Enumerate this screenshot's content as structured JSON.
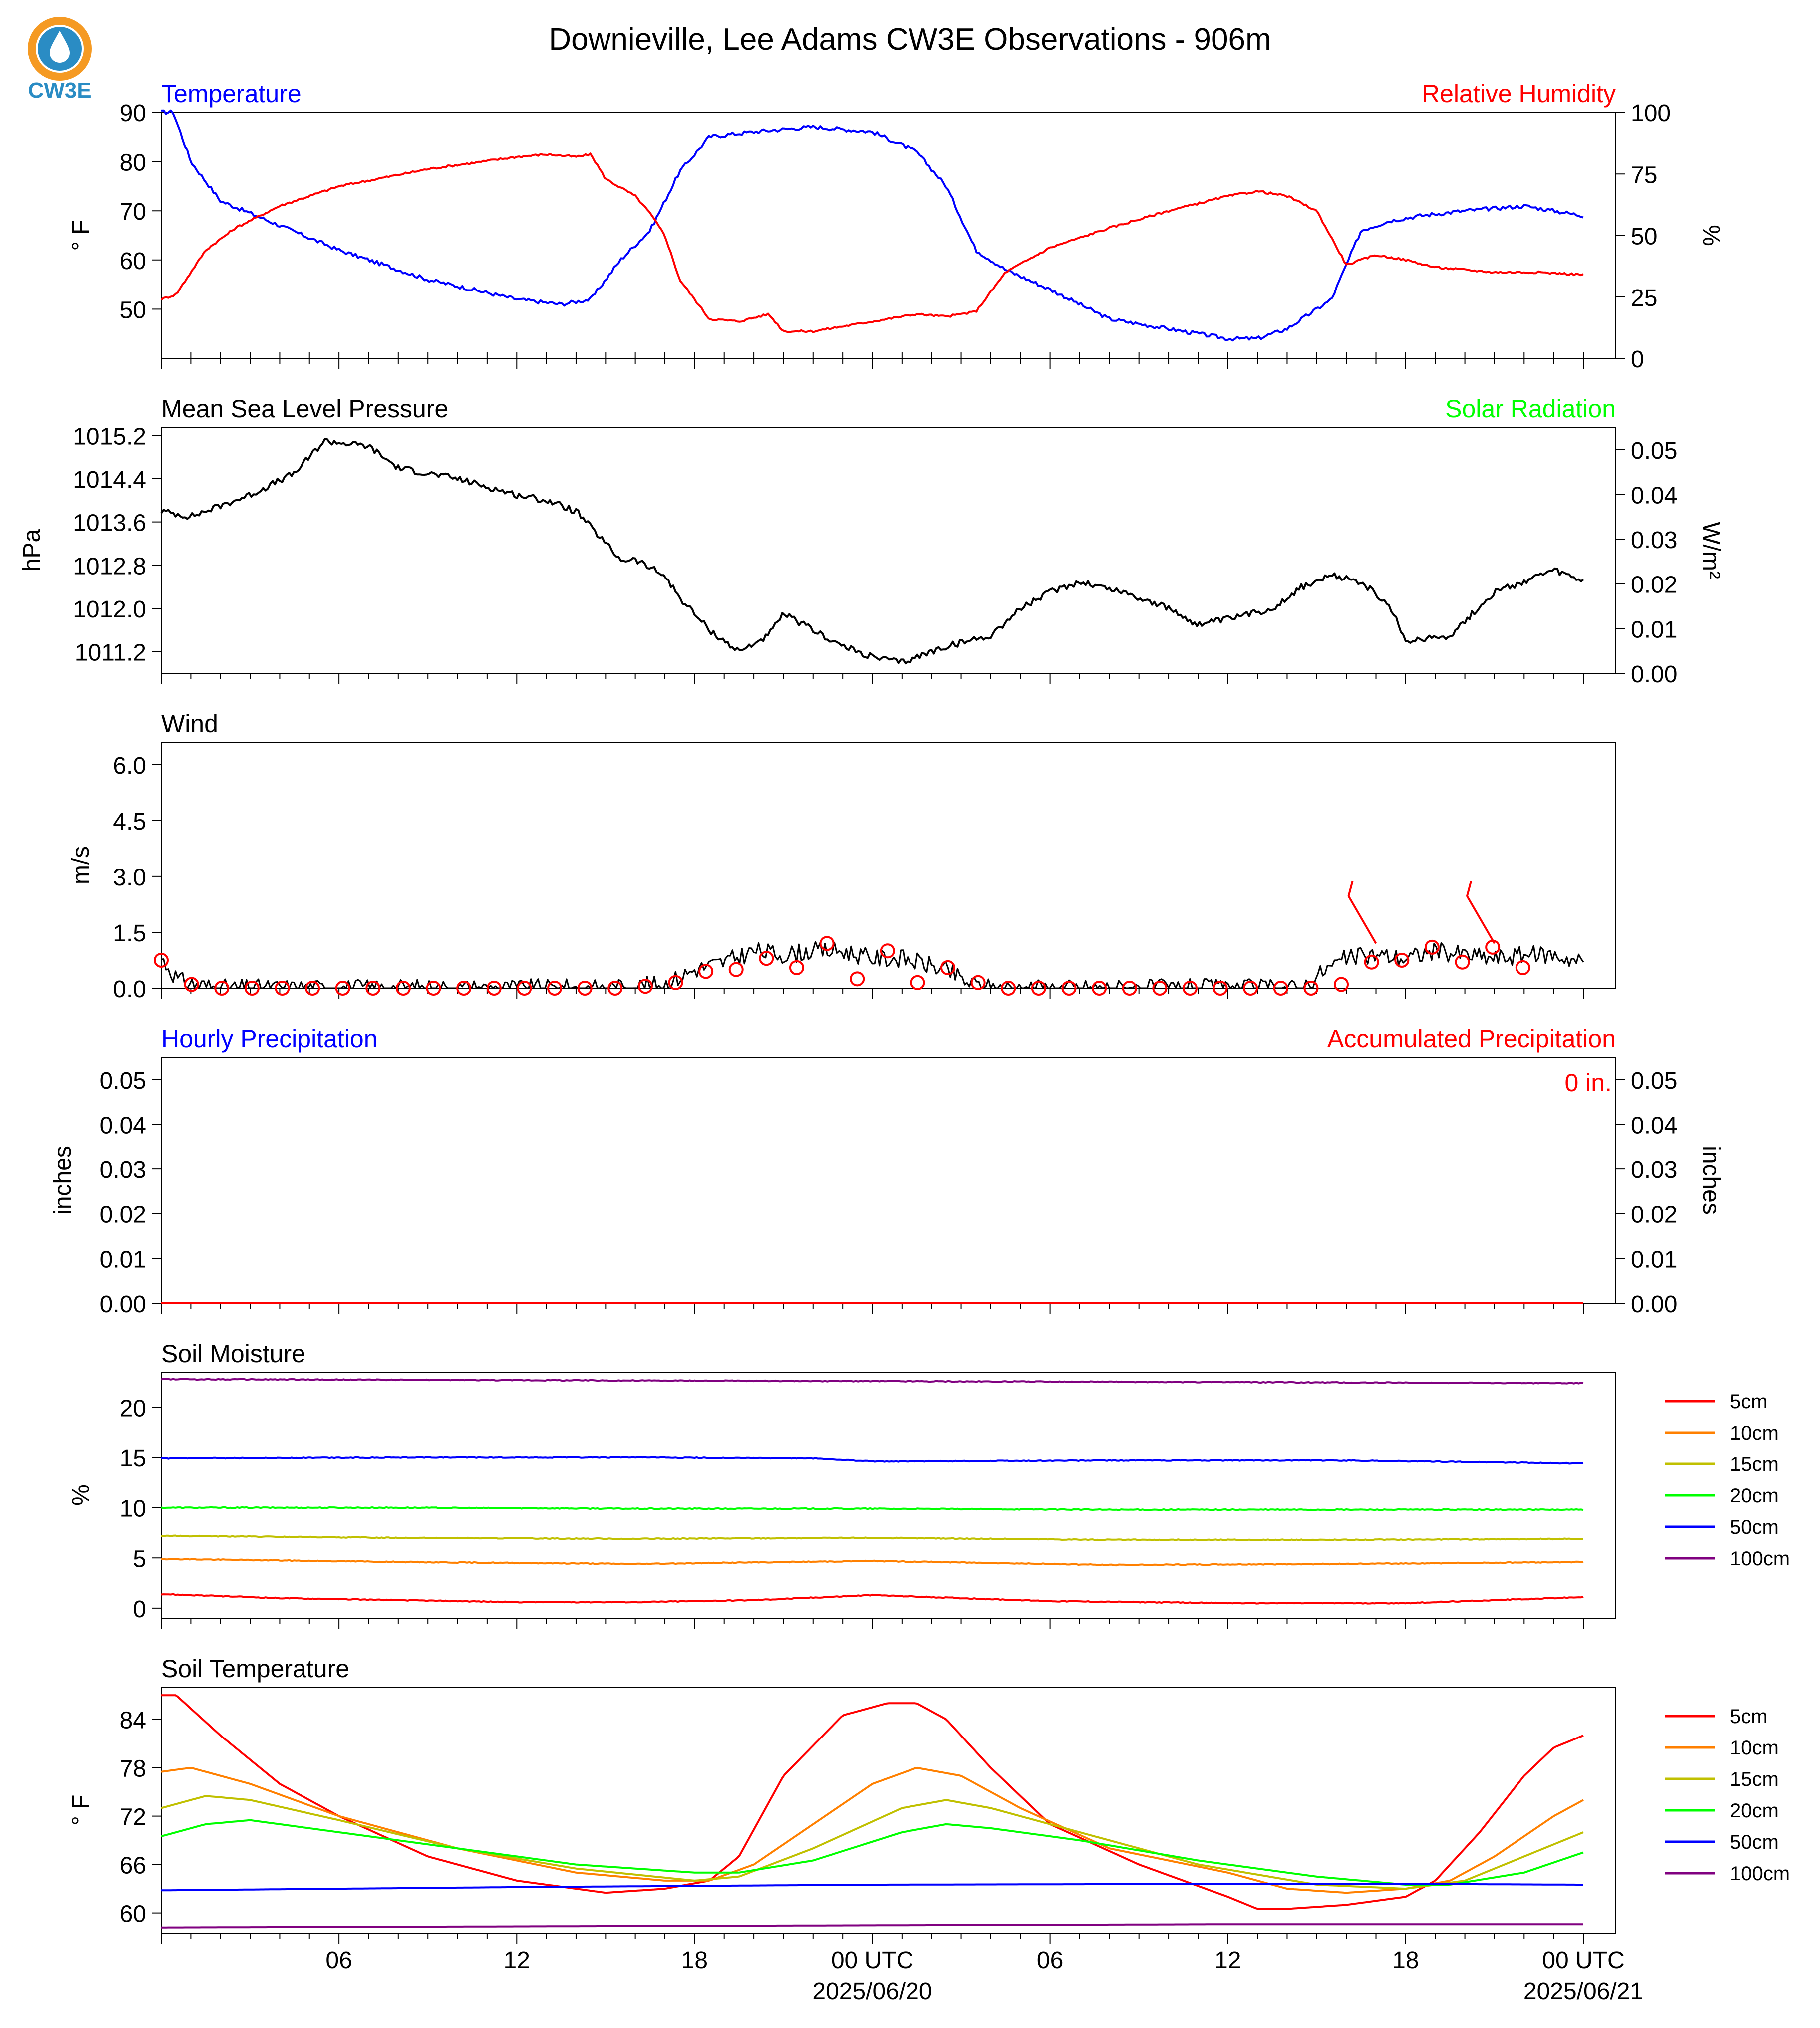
{
  "page": {
    "title": "Downieville, Lee Adams CW3E Observations - 906m",
    "logo_text": "CW3E"
  },
  "colors": {
    "temperature": "#0000ff",
    "humidity": "#ff0000",
    "pressure": "#000000",
    "solar": "#00ff00",
    "wind": "#000000",
    "wind_marker": "#ff0000",
    "precip_hourly": "#0000ff",
    "precip_accum": "#ff0000",
    "depth_5cm": "#ff0000",
    "depth_10cm": "#ff8000",
    "depth_15cm": "#c0c000",
    "depth_20cm": "#00ff00",
    "depth_50cm": "#0000ff",
    "depth_100cm": "#800080",
    "logo": "#2a8cc4",
    "logo_accent": "#f59a23"
  },
  "time_axis": {
    "ticks": [
      {
        "hour": 6,
        "label": "06",
        "sub": ""
      },
      {
        "hour": 12,
        "label": "12",
        "sub": ""
      },
      {
        "hour": 18,
        "label": "18",
        "sub": ""
      },
      {
        "hour": 24,
        "label": "00 UTC",
        "sub": "2025/06/20"
      },
      {
        "hour": 30,
        "label": "06",
        "sub": ""
      },
      {
        "hour": 36,
        "label": "12",
        "sub": ""
      },
      {
        "hour": 42,
        "label": "18",
        "sub": ""
      },
      {
        "hour": 48,
        "label": "00 UTC",
        "sub": "2025/06/21"
      }
    ]
  },
  "chart_data": [
    {
      "type": "line",
      "panel": "temperature_humidity",
      "left_title": "Temperature",
      "right_title": "Relative Humidity",
      "ylabel": "° F",
      "ylabel_right": "%",
      "ylim": [
        40,
        90
      ],
      "ylim_right": [
        0,
        100
      ],
      "yticks": [
        "50",
        "60",
        "70",
        "80",
        "90"
      ],
      "yticks_right": [
        "0",
        "25",
        "50",
        "75",
        "100"
      ],
      "series": [
        {
          "name": "Temperature",
          "axis": "left",
          "x": [
            0,
            0.4,
            1,
            2,
            4,
            6,
            9,
            12,
            13.5,
            14.5,
            15.5,
            16.5,
            17.5,
            18.5,
            20,
            22,
            24,
            25.5,
            26.5,
            27.5,
            28.5,
            30,
            32,
            34,
            36,
            37,
            38,
            39.5,
            40.5,
            41.5,
            42.5,
            44,
            46,
            48
          ],
          "y": [
            90,
            90,
            80,
            72,
            67,
            62,
            56,
            52,
            51,
            52,
            60,
            66,
            78,
            85,
            86,
            87,
            86,
            82,
            75,
            62,
            58,
            54,
            48,
            46,
            44,
            44,
            46,
            52,
            66,
            68,
            69,
            70,
            71,
            69
          ]
        },
        {
          "name": "Relative Humidity",
          "axis": "right",
          "x": [
            0,
            0.5,
            1.5,
            2.5,
            4,
            6,
            9,
            12,
            13,
            14,
            14.5,
            15,
            16,
            16.5,
            17,
            17.5,
            18.5,
            19.5,
            20.5,
            21,
            22,
            24,
            25.5,
            26.5,
            27.5,
            28.5,
            30,
            32,
            34,
            36,
            37,
            38,
            39,
            40,
            41,
            42,
            43,
            45,
            46.5,
            48
          ],
          "y": [
            24,
            26,
            44,
            53,
            62,
            70,
            77,
            82,
            83,
            82,
            83,
            73,
            66,
            59,
            50,
            32,
            16,
            15,
            18,
            11,
            11,
            15,
            18,
            17,
            19,
            35,
            45,
            53,
            60,
            66,
            68,
            66,
            60,
            38,
            42,
            40,
            37,
            35,
            35,
            34
          ]
        }
      ]
    },
    {
      "type": "line",
      "panel": "pressure_solar",
      "left_title": "Mean Sea Level Pressure",
      "right_title": "Solar Radiation",
      "ylabel": "hPa",
      "ylabel_right": "W/m²",
      "ylim": [
        1010.8,
        1015.35
      ],
      "ylim_right": [
        0,
        0.055
      ],
      "yticks": [
        "1011.2",
        "1012.0",
        "1012.8",
        "1013.6",
        "1014.4",
        "1015.2"
      ],
      "yticks_right": [
        "0.00",
        "0.01",
        "0.02",
        "0.03",
        "0.04",
        "0.05"
      ],
      "series": [
        {
          "name": "Mean Sea Level Pressure",
          "axis": "left",
          "x": [
            0,
            1,
            3,
            4.5,
            5.5,
            7,
            8,
            10,
            12,
            13,
            14,
            15.5,
            16,
            17,
            17.5,
            18.5,
            19.5,
            20.5,
            21,
            22,
            23,
            24,
            25,
            26.5,
            28,
            29,
            30,
            31,
            32.5,
            34,
            35,
            36,
            37.5,
            38.5,
            39.5,
            40.5,
            41.5,
            42,
            43.5,
            45,
            46,
            47,
            48
          ],
          "y": [
            1013.8,
            1013.7,
            1014.1,
            1014.5,
            1015.1,
            1015.0,
            1014.6,
            1014.4,
            1014.1,
            1014.0,
            1013.8,
            1012.9,
            1012.9,
            1012.6,
            1012.2,
            1011.6,
            1011.2,
            1011.5,
            1011.9,
            1011.6,
            1011.3,
            1011.1,
            1011.0,
            1011.3,
            1011.5,
            1012.0,
            1012.3,
            1012.5,
            1012.3,
            1012.0,
            1011.7,
            1011.8,
            1012.0,
            1012.4,
            1012.6,
            1012.5,
            1012.0,
            1011.4,
            1011.5,
            1012.3,
            1012.5,
            1012.7,
            1012.5
          ]
        }
      ]
    },
    {
      "type": "line",
      "panel": "wind",
      "left_title": "Wind",
      "ylabel": "m/s",
      "ylim": [
        0,
        6.6
      ],
      "yticks": [
        "0.0",
        "1.5",
        "3.0",
        "4.5",
        "6.0"
      ],
      "series": [
        {
          "name": "Wind speed",
          "x": [
            0,
            0.6,
            1.2,
            2,
            15,
            16,
            17,
            18,
            19,
            20,
            21,
            22,
            23,
            24,
            25,
            26,
            26.7,
            27.2,
            28,
            38.5,
            39.3,
            40,
            41,
            42,
            43,
            44,
            45,
            46,
            47,
            48
          ],
          "y": [
            0.8,
            0.2,
            0.1,
            0,
            0,
            0.05,
            0.1,
            0.5,
            0.7,
            1.0,
            0.9,
            1.0,
            1.0,
            0.8,
            0.8,
            0.6,
            0.4,
            0.15,
            0,
            0,
            0.5,
            0.8,
            0.9,
            0.8,
            1.0,
            0.9,
            0.8,
            0.9,
            0.9,
            0.7
          ]
        }
      ],
      "hourly_markers": [
        0.75,
        0.1,
        0,
        0,
        0,
        0,
        0,
        0,
        0,
        0,
        0,
        0,
        0,
        0,
        0,
        0,
        0.05,
        0.15,
        0.45,
        0.5,
        0.8,
        0.55,
        1.2,
        0.25,
        1.0,
        0.15,
        0.55,
        0.15,
        0,
        0,
        0,
        0,
        0,
        0,
        0,
        0,
        0,
        0,
        0,
        0.1,
        0.7,
        0.75,
        1.1,
        0.7,
        1.1,
        0.55
      ],
      "wind_barbs": [
        {
          "hour": 41.0
        },
        {
          "hour": 45.0
        }
      ]
    },
    {
      "type": "line",
      "panel": "precipitation",
      "left_title": "Hourly Precipitation",
      "right_title": "Accumulated Precipitation",
      "ylabel": "inches",
      "ylabel_right": "inches",
      "ylim": [
        0,
        0.055
      ],
      "ylim_right": [
        0,
        0.055
      ],
      "yticks": [
        "0.00",
        "0.01",
        "0.02",
        "0.03",
        "0.04",
        "0.05"
      ],
      "yticks_right": [
        "0.00",
        "0.01",
        "0.02",
        "0.03",
        "0.04",
        "0.05"
      ],
      "accum_label": "0 in.",
      "series": [
        {
          "name": "Accumulated Precipitation",
          "x": [
            0,
            48
          ],
          "y": [
            0,
            0
          ]
        }
      ]
    },
    {
      "type": "line",
      "panel": "soil_moisture",
      "left_title": "Soil Moisture",
      "ylabel": "%",
      "ylim": [
        -1,
        23.5
      ],
      "yticks": [
        "0",
        "5",
        "10",
        "15",
        "20"
      ],
      "series": [
        {
          "name": "5cm",
          "x": [
            0,
            4,
            8,
            12,
            16,
            20,
            24,
            27,
            30,
            36,
            42,
            48
          ],
          "y": [
            1.4,
            1.0,
            0.8,
            0.6,
            0.6,
            0.8,
            1.3,
            1.0,
            0.7,
            0.5,
            0.5,
            1.1
          ]
        },
        {
          "name": "10cm",
          "x": [
            0,
            8,
            16,
            24,
            32,
            40,
            48
          ],
          "y": [
            4.9,
            4.6,
            4.4,
            4.7,
            4.3,
            4.4,
            4.6
          ]
        },
        {
          "name": "15cm",
          "x": [
            0,
            8,
            16,
            24,
            32,
            40,
            48
          ],
          "y": [
            7.2,
            7.0,
            6.9,
            7.0,
            6.8,
            6.8,
            6.9
          ]
        },
        {
          "name": "20cm",
          "x": [
            0,
            8,
            16,
            24,
            32,
            40,
            48
          ],
          "y": [
            10.0,
            10.0,
            9.9,
            9.9,
            9.8,
            9.8,
            9.8
          ]
        },
        {
          "name": "50cm",
          "x": [
            0,
            8,
            16,
            22,
            24,
            32,
            40,
            48
          ],
          "y": [
            14.9,
            15.0,
            15.0,
            14.9,
            14.6,
            14.7,
            14.7,
            14.4
          ]
        },
        {
          "name": "100cm",
          "x": [
            0,
            12,
            24,
            36,
            48
          ],
          "y": [
            22.8,
            22.7,
            22.6,
            22.5,
            22.4
          ]
        }
      ]
    },
    {
      "type": "line",
      "panel": "soil_temperature",
      "left_title": "Soil Temperature",
      "ylabel": "° F",
      "ylim": [
        57.5,
        88
      ],
      "yticks": [
        "60",
        "66",
        "72",
        "78",
        "84"
      ],
      "series": [
        {
          "name": "5cm",
          "x": [
            0,
            0.5,
            2,
            4,
            6,
            9,
            12,
            15,
            17,
            18.5,
            19.5,
            21,
            23,
            24.5,
            25.5,
            26.5,
            28,
            30,
            33,
            36,
            37,
            38,
            40,
            42,
            43,
            44.5,
            46,
            47,
            48
          ],
          "y": [
            87,
            87,
            82,
            76,
            72,
            67,
            64,
            62.5,
            63,
            64,
            67,
            77,
            84.5,
            86,
            86,
            84,
            78,
            71,
            66,
            62,
            60.5,
            60.5,
            61,
            62,
            64,
            70,
            77,
            80.5,
            82
          ]
        },
        {
          "name": "10cm",
          "x": [
            0,
            1,
            3,
            6,
            10,
            14,
            17,
            18.5,
            20,
            22,
            24,
            25.5,
            27,
            29,
            32,
            36,
            38,
            40,
            42,
            43.5,
            45,
            47,
            48
          ],
          "y": [
            77.5,
            78,
            76,
            72,
            68,
            65,
            64,
            64,
            66,
            71,
            76,
            78,
            77,
            73,
            68,
            65,
            63,
            62.5,
            63,
            64,
            67,
            72,
            74
          ]
        },
        {
          "name": "15cm",
          "x": [
            0,
            1.5,
            3,
            6,
            10,
            14,
            18,
            19.5,
            22,
            25,
            26.5,
            28,
            31,
            35,
            39,
            42,
            44,
            46,
            48
          ],
          "y": [
            73,
            74.5,
            74,
            71.5,
            68,
            65.5,
            64,
            64.5,
            68,
            73,
            74,
            73,
            70,
            66,
            63.5,
            63,
            64,
            67,
            70
          ]
        },
        {
          "name": "20cm",
          "x": [
            0,
            1.5,
            3,
            6,
            10,
            14,
            18,
            19.5,
            22,
            25,
            26.5,
            28,
            31,
            35,
            39,
            42,
            43.5,
            46,
            48
          ],
          "y": [
            69.5,
            71,
            71.5,
            70,
            68,
            66,
            65,
            65,
            66.5,
            70,
            71,
            70.5,
            69,
            66.5,
            64.5,
            63.5,
            63.5,
            65,
            67.5
          ]
        },
        {
          "name": "50cm",
          "x": [
            0,
            12,
            24,
            36,
            42,
            48
          ],
          "y": [
            62.8,
            63.2,
            63.5,
            63.6,
            63.6,
            63.5
          ]
        },
        {
          "name": "100cm",
          "x": [
            0,
            18,
            36,
            48
          ],
          "y": [
            58.2,
            58.4,
            58.6,
            58.6
          ]
        }
      ]
    }
  ],
  "legend": [
    "5cm",
    "10cm",
    "15cm",
    "20cm",
    "50cm",
    "100cm"
  ]
}
